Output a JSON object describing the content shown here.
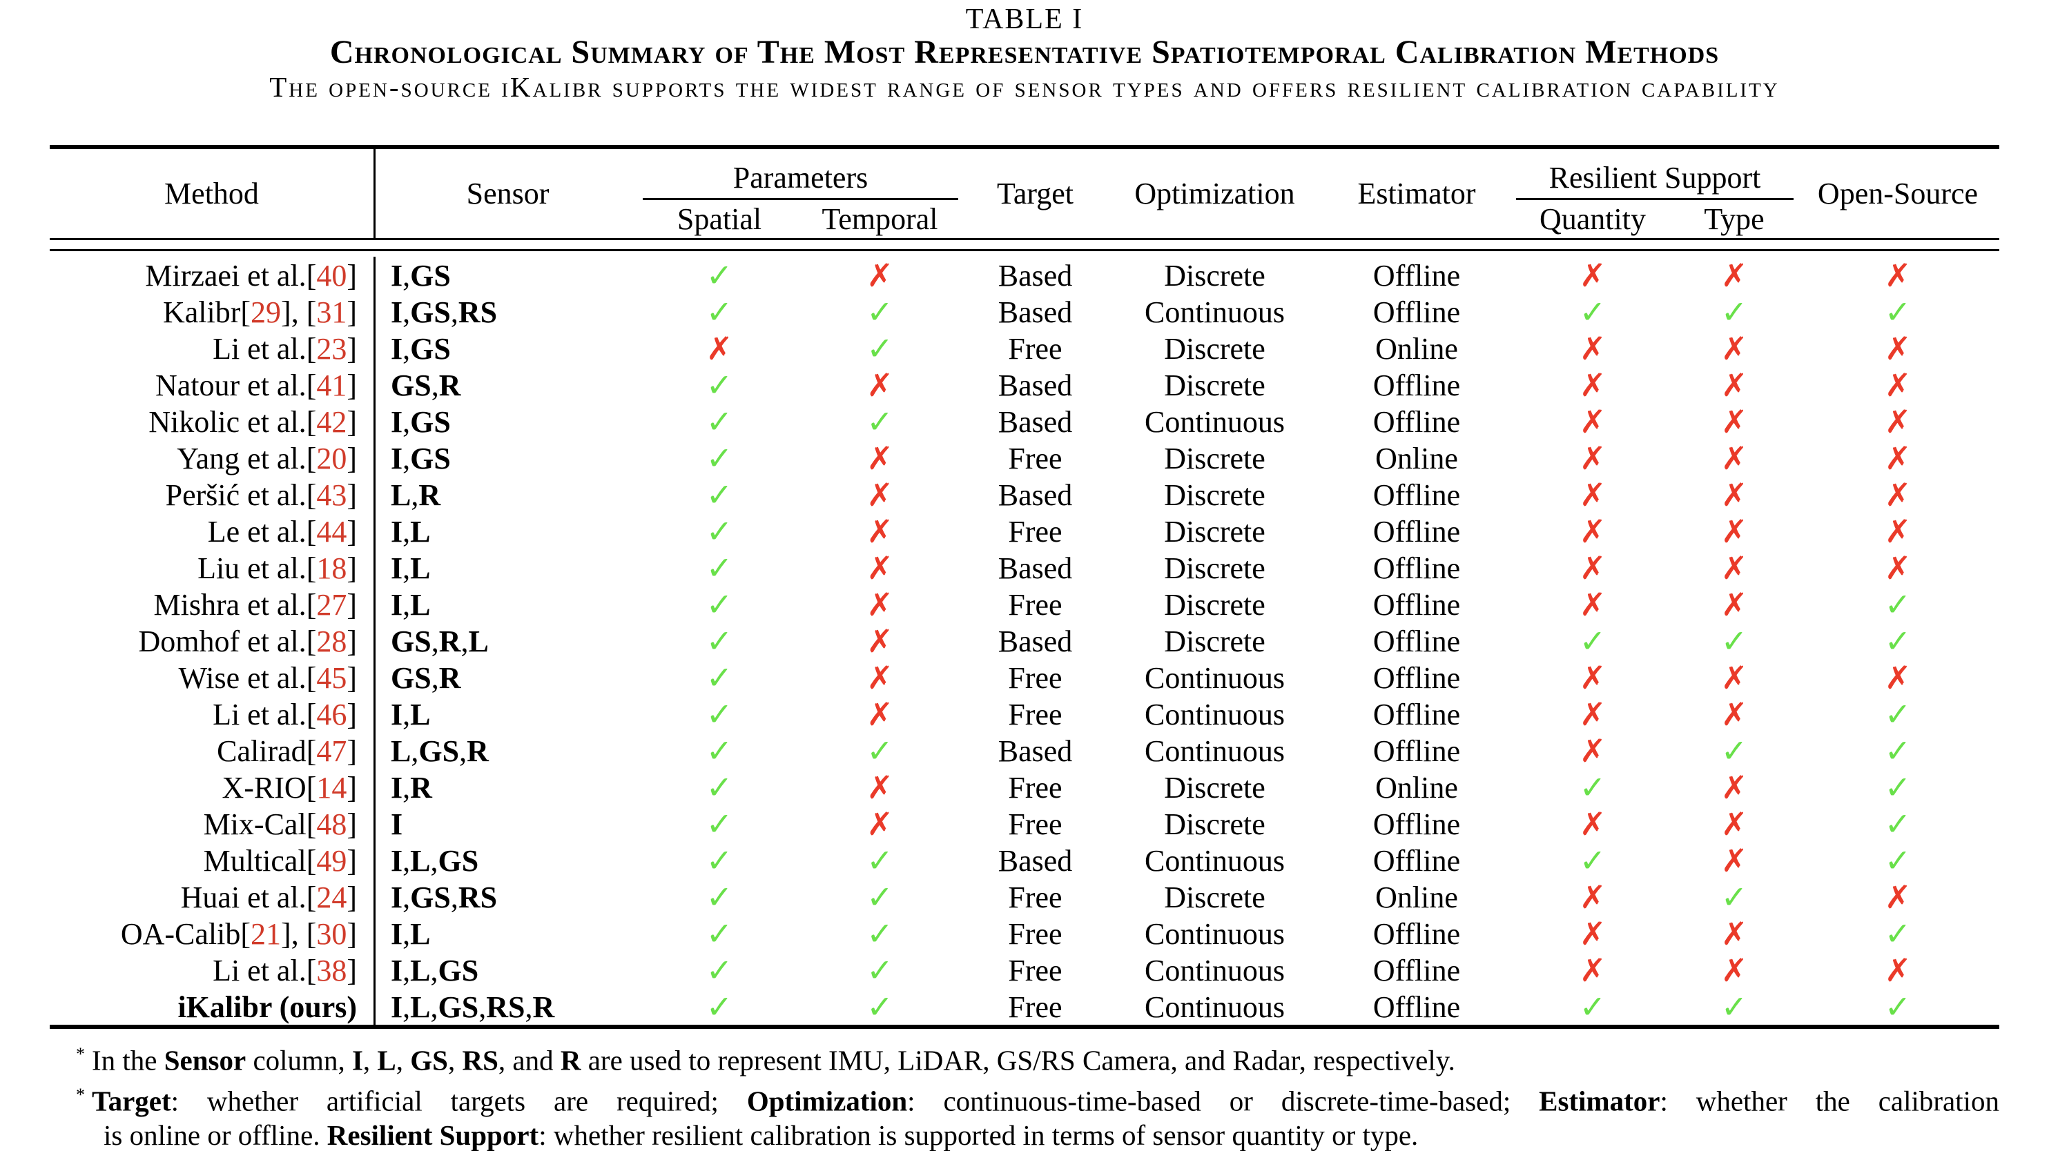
{
  "title": {
    "label": "TABLE I",
    "caption": "Chronological Summary of The Most Representative Spatiotemporal Calibration Methods",
    "subtitle": "The open-source iKalibr supports the widest range of sensor types and offers resilient calibration capability"
  },
  "header": {
    "method": "Method",
    "sensor": "Sensor",
    "parameters": {
      "label": "Parameters",
      "spatial": "Spatial",
      "temporal": "Temporal"
    },
    "target": "Target",
    "optimization": "Optimization",
    "estimator": "Estimator",
    "resilient": {
      "label": "Resilient Support",
      "quantity": "Quantity",
      "type": "Type"
    },
    "open_source": "Open-Source"
  },
  "icons": {
    "check": "✓",
    "cross": "✗"
  },
  "colors": {
    "check_green": "#69e04a",
    "cross_red": "#ea3a29",
    "citation_red": "#d13b2a"
  },
  "rows": [
    {
      "method": "Mirzaei et al.",
      "refs": [
        "40"
      ],
      "bold": false,
      "sensors": [
        "I",
        "GS"
      ],
      "spatial": true,
      "temporal": false,
      "target": "Based",
      "optimization": "Discrete",
      "estimator": "Offline",
      "quantity": false,
      "type": false,
      "open_source": false
    },
    {
      "method": "Kalibr",
      "refs": [
        "29",
        "31"
      ],
      "bold": false,
      "sensors": [
        "I",
        "GS",
        "RS"
      ],
      "spatial": true,
      "temporal": true,
      "target": "Based",
      "optimization": "Continuous",
      "estimator": "Offline",
      "quantity": true,
      "type": true,
      "open_source": true
    },
    {
      "method": "Li et al.",
      "refs": [
        "23"
      ],
      "bold": false,
      "sensors": [
        "I",
        "GS"
      ],
      "spatial": false,
      "temporal": true,
      "target": "Free",
      "optimization": "Discrete",
      "estimator": "Online",
      "quantity": false,
      "type": false,
      "open_source": false
    },
    {
      "method": "Natour et al.",
      "refs": [
        "41"
      ],
      "bold": false,
      "sensors": [
        "GS",
        "R"
      ],
      "spatial": true,
      "temporal": false,
      "target": "Based",
      "optimization": "Discrete",
      "estimator": "Offline",
      "quantity": false,
      "type": false,
      "open_source": false
    },
    {
      "method": "Nikolic et al.",
      "refs": [
        "42"
      ],
      "bold": false,
      "sensors": [
        "I",
        "GS"
      ],
      "spatial": true,
      "temporal": true,
      "target": "Based",
      "optimization": "Continuous",
      "estimator": "Offline",
      "quantity": false,
      "type": false,
      "open_source": false
    },
    {
      "method": "Yang et al.",
      "refs": [
        "20"
      ],
      "bold": false,
      "sensors": [
        "I",
        "GS"
      ],
      "spatial": true,
      "temporal": false,
      "target": "Free",
      "optimization": "Discrete",
      "estimator": "Online",
      "quantity": false,
      "type": false,
      "open_source": false
    },
    {
      "method": "Peršić et al.",
      "refs": [
        "43"
      ],
      "bold": false,
      "sensors": [
        "L",
        "R"
      ],
      "spatial": true,
      "temporal": false,
      "target": "Based",
      "optimization": "Discrete",
      "estimator": "Offline",
      "quantity": false,
      "type": false,
      "open_source": false
    },
    {
      "method": "Le et al.",
      "refs": [
        "44"
      ],
      "bold": false,
      "sensors": [
        "I",
        "L"
      ],
      "spatial": true,
      "temporal": false,
      "target": "Free",
      "optimization": "Discrete",
      "estimator": "Offline",
      "quantity": false,
      "type": false,
      "open_source": false
    },
    {
      "method": "Liu et al.",
      "refs": [
        "18"
      ],
      "bold": false,
      "sensors": [
        "I",
        "L"
      ],
      "spatial": true,
      "temporal": false,
      "target": "Based",
      "optimization": "Discrete",
      "estimator": "Offline",
      "quantity": false,
      "type": false,
      "open_source": false
    },
    {
      "method": "Mishra et al.",
      "refs": [
        "27"
      ],
      "bold": false,
      "sensors": [
        "I",
        "L"
      ],
      "spatial": true,
      "temporal": false,
      "target": "Free",
      "optimization": "Discrete",
      "estimator": "Offline",
      "quantity": false,
      "type": false,
      "open_source": true
    },
    {
      "method": "Domhof et al.",
      "refs": [
        "28"
      ],
      "bold": false,
      "sensors": [
        "GS",
        "R",
        "L"
      ],
      "spatial": true,
      "temporal": false,
      "target": "Based",
      "optimization": "Discrete",
      "estimator": "Offline",
      "quantity": true,
      "type": true,
      "open_source": true
    },
    {
      "method": "Wise et al.",
      "refs": [
        "45"
      ],
      "bold": false,
      "sensors": [
        "GS",
        "R"
      ],
      "spatial": true,
      "temporal": false,
      "target": "Free",
      "optimization": "Continuous",
      "estimator": "Offline",
      "quantity": false,
      "type": false,
      "open_source": false
    },
    {
      "method": "Li et al.",
      "refs": [
        "46"
      ],
      "bold": false,
      "sensors": [
        "I",
        "L"
      ],
      "spatial": true,
      "temporal": false,
      "target": "Free",
      "optimization": "Continuous",
      "estimator": "Offline",
      "quantity": false,
      "type": false,
      "open_source": true
    },
    {
      "method": "Calirad",
      "refs": [
        "47"
      ],
      "bold": false,
      "sensors": [
        "L",
        "GS",
        "R"
      ],
      "spatial": true,
      "temporal": true,
      "target": "Based",
      "optimization": "Continuous",
      "estimator": "Offline",
      "quantity": false,
      "type": true,
      "open_source": true
    },
    {
      "method": "X-RIO",
      "refs": [
        "14"
      ],
      "bold": false,
      "sensors": [
        "I",
        "R"
      ],
      "spatial": true,
      "temporal": false,
      "target": "Free",
      "optimization": "Discrete",
      "estimator": "Online",
      "quantity": true,
      "type": false,
      "open_source": true
    },
    {
      "method": "Mix-Cal",
      "refs": [
        "48"
      ],
      "bold": false,
      "sensors": [
        "I"
      ],
      "spatial": true,
      "temporal": false,
      "target": "Free",
      "optimization": "Discrete",
      "estimator": "Offline",
      "quantity": false,
      "type": false,
      "open_source": true
    },
    {
      "method": "Multical",
      "refs": [
        "49"
      ],
      "bold": false,
      "sensors": [
        "I",
        "L",
        "GS"
      ],
      "spatial": true,
      "temporal": true,
      "target": "Based",
      "optimization": "Continuous",
      "estimator": "Offline",
      "quantity": true,
      "type": false,
      "open_source": true
    },
    {
      "method": "Huai et al.",
      "refs": [
        "24"
      ],
      "bold": false,
      "sensors": [
        "I",
        "GS",
        "RS"
      ],
      "spatial": true,
      "temporal": true,
      "target": "Free",
      "optimization": "Discrete",
      "estimator": "Online",
      "quantity": false,
      "type": true,
      "open_source": false
    },
    {
      "method": "OA-Calib",
      "refs": [
        "21",
        "30"
      ],
      "bold": false,
      "sensors": [
        "I",
        "L"
      ],
      "spatial": true,
      "temporal": true,
      "target": "Free",
      "optimization": "Continuous",
      "estimator": "Offline",
      "quantity": false,
      "type": false,
      "open_source": true
    },
    {
      "method": "Li et al.",
      "refs": [
        "38"
      ],
      "bold": false,
      "sensors": [
        "I",
        "L",
        "GS"
      ],
      "spatial": true,
      "temporal": true,
      "target": "Free",
      "optimization": "Continuous",
      "estimator": "Offline",
      "quantity": false,
      "type": false,
      "open_source": false
    },
    {
      "method": "iKalibr (ours)",
      "refs": [],
      "bold": true,
      "sensors": [
        "I",
        "L",
        "GS",
        "RS",
        "R"
      ],
      "spatial": true,
      "temporal": true,
      "target": "Free",
      "optimization": "Continuous",
      "estimator": "Offline",
      "quantity": true,
      "type": true,
      "open_source": true
    }
  ],
  "footnotes": [
    {
      "marker": "*",
      "indent": false,
      "justify": false,
      "segments": [
        {
          "t": "In the "
        },
        {
          "t": "Sensor",
          "b": true
        },
        {
          "t": " column, "
        },
        {
          "t": "I",
          "b": true
        },
        {
          "t": ", "
        },
        {
          "t": "L",
          "b": true
        },
        {
          "t": ", "
        },
        {
          "t": "GS",
          "b": true
        },
        {
          "t": ", "
        },
        {
          "t": "RS",
          "b": true
        },
        {
          "t": ", and "
        },
        {
          "t": "R",
          "b": true
        },
        {
          "t": " are used to represent IMU, LiDAR, GS/RS Camera, and Radar, respectively."
        }
      ]
    },
    {
      "marker": "*",
      "indent": false,
      "justify": true,
      "segments": [
        {
          "t": "Target",
          "b": true
        },
        {
          "t": ": whether artificial targets are required; "
        },
        {
          "t": "Optimization",
          "b": true
        },
        {
          "t": ": continuous-time-based or discrete-time-based; "
        },
        {
          "t": "Estimator",
          "b": true
        },
        {
          "t": ": whether the calibration"
        }
      ]
    },
    {
      "marker": null,
      "indent": true,
      "justify": false,
      "segments": [
        {
          "t": "is online or offline. "
        },
        {
          "t": "Resilient Support",
          "b": true
        },
        {
          "t": ": whether resilient calibration is supported in terms of sensor quantity or type."
        }
      ]
    }
  ]
}
